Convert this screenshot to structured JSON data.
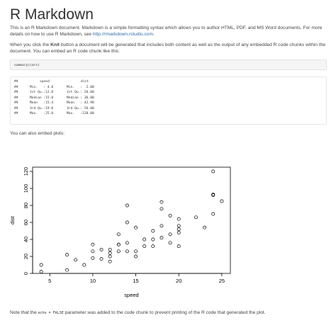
{
  "title": "R Markdown",
  "intro": {
    "text": "This is an R Markdown document. Markdown is a simple formatting syntax which allows you to author HTML, PDF, and MS Word documents. For more details on how to use R Markdown, see ",
    "link": "http://rmarkdown.rstudio.com",
    "end": "."
  },
  "knit": {
    "before": "When you click the ",
    "bold": "Knit",
    "after": " button a document will be generated that includes both content as well as the output of any embedded R code chunks within the document. You can embed an R code chunk like this:"
  },
  "code_chunk": "summary(cars)",
  "summary": {
    "prefix": "##",
    "headers": [
      "speed",
      "dist"
    ],
    "rows": [
      [
        "Min.   : 4.0",
        "Min.   :  2.00"
      ],
      [
        "1st Qu.:12.0",
        "1st Qu.: 26.00"
      ],
      [
        "Median :15.0",
        "Median : 36.00"
      ],
      [
        "Mean   :15.4",
        "Mean   : 42.98"
      ],
      [
        "3rd Qu.:19.0",
        "3rd Qu.: 56.00"
      ],
      [
        "Max.   :25.0",
        "Max.   :120.00"
      ]
    ]
  },
  "plots_text": "You can also embed plots:",
  "note": {
    "before": "Note that the ",
    "code": "echo = FALSE",
    "after": " parameter was added to the code chunk to prevent printing of the R code that generated the plot."
  },
  "chart_data": {
    "type": "scatter",
    "xlabel": "speed",
    "ylabel": "dist",
    "xlim": [
      3,
      26
    ],
    "ylim": [
      0,
      125
    ],
    "xticks": [
      5,
      10,
      15,
      20,
      25
    ],
    "yticks": [
      0,
      20,
      40,
      60,
      80,
      100,
      120
    ],
    "grid": false,
    "points": [
      [
        4,
        2
      ],
      [
        4,
        10
      ],
      [
        7,
        4
      ],
      [
        7,
        22
      ],
      [
        8,
        16
      ],
      [
        9,
        10
      ],
      [
        10,
        18
      ],
      [
        10,
        26
      ],
      [
        10,
        34
      ],
      [
        11,
        17
      ],
      [
        11,
        28
      ],
      [
        12,
        14
      ],
      [
        12,
        20
      ],
      [
        12,
        24
      ],
      [
        12,
        28
      ],
      [
        13,
        26
      ],
      [
        13,
        34
      ],
      [
        13,
        34
      ],
      [
        13,
        46
      ],
      [
        14,
        26
      ],
      [
        14,
        36
      ],
      [
        14,
        60
      ],
      [
        14,
        80
      ],
      [
        15,
        20
      ],
      [
        15,
        26
      ],
      [
        15,
        54
      ],
      [
        16,
        32
      ],
      [
        16,
        40
      ],
      [
        17,
        32
      ],
      [
        17,
        40
      ],
      [
        17,
        50
      ],
      [
        18,
        42
      ],
      [
        18,
        56
      ],
      [
        18,
        76
      ],
      [
        18,
        84
      ],
      [
        19,
        36
      ],
      [
        19,
        46
      ],
      [
        19,
        68
      ],
      [
        20,
        32
      ],
      [
        20,
        48
      ],
      [
        20,
        52
      ],
      [
        20,
        56
      ],
      [
        20,
        64
      ],
      [
        22,
        66
      ],
      [
        23,
        54
      ],
      [
        24,
        70
      ],
      [
        24,
        92
      ],
      [
        24,
        93
      ],
      [
        24,
        120
      ],
      [
        25,
        85
      ]
    ]
  }
}
